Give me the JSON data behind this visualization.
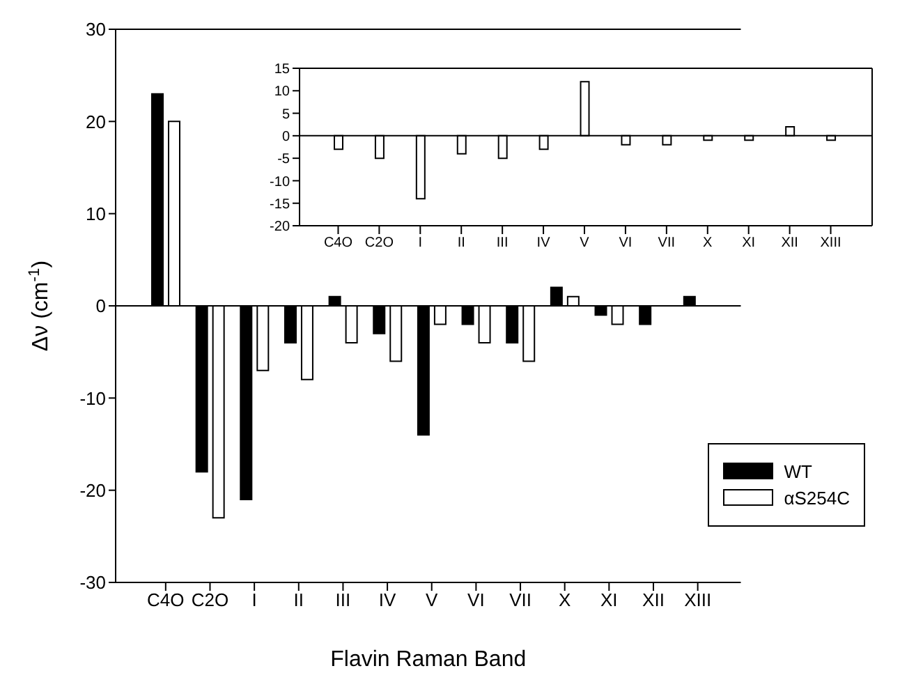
{
  "chart_data": [
    {
      "type": "bar",
      "xlabel": "Flavin Raman Band",
      "ylabel": "Δν (cm$^{-1}$)",
      "categories": [
        "C4O",
        "C2O",
        "I",
        "II",
        "III",
        "IV",
        "V",
        "VI",
        "VII",
        "X",
        "XI",
        "XII",
        "XIII"
      ],
      "series": [
        {
          "name": "WT",
          "color": "#000000",
          "values": [
            23,
            -18,
            -21,
            -4,
            1,
            -3,
            -14,
            -2,
            -4,
            2,
            -1,
            -2,
            1
          ]
        },
        {
          "name": "αS254C",
          "color": "#ffffff",
          "values": [
            20,
            -23,
            -7,
            -8,
            -4,
            -6,
            -2,
            -4,
            -6,
            1,
            -2,
            null,
            null
          ]
        }
      ],
      "ylim": [
        -30,
        30
      ],
      "yticks": [
        -30,
        -20,
        -10,
        0,
        10,
        20,
        30
      ],
      "ref_lines": [
        {
          "axis": "y",
          "value": 0
        }
      ],
      "legend": "bottom right",
      "grid": false
    },
    {
      "type": "bar",
      "categories": [
        "C4O",
        "C2O",
        "I",
        "II",
        "III",
        "IV",
        "V",
        "VI",
        "VII",
        "X",
        "XI",
        "XII",
        "XIII"
      ],
      "values": [
        -3,
        -5,
        -14,
        -4,
        -5,
        -3,
        12,
        -2,
        -2,
        -1,
        -1,
        2,
        -1
      ],
      "color": "#ffffff",
      "ylim": [
        -20,
        15
      ],
      "yticks": [
        -20,
        -15,
        -10,
        -5,
        0,
        5,
        10,
        15
      ],
      "ref_lines": [
        {
          "axis": "y",
          "value": 0
        }
      ],
      "grid": false
    }
  ]
}
